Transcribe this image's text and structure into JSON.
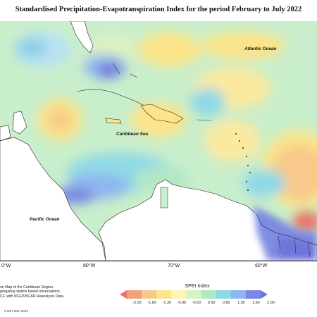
{
  "title": "Standardised Precipitation-Evapotranspiration Index for the period February to July 2022",
  "map": {
    "labels": {
      "atlantic": "Atlantic Ocean",
      "caribbean": "Caribbean Sea",
      "pacific": "Pacific Ocean"
    },
    "lon_labels": [
      "0°W",
      "80°W",
      "70°W",
      "60°W"
    ]
  },
  "description": {
    "line1": "on Map of the Caribbean Region.",
    "line2": "gregating station based observations,",
    "line3": "CF, with NCEP/NCAR Reanalysis Data."
  },
  "credit": "CIMH Mar-2023",
  "legend": {
    "title": "SPEI Index",
    "ticks": [
      "-2.00",
      "-1.60",
      "-1.30",
      "-0.80",
      "-0.50",
      "0.50",
      "0.80",
      "1.30",
      "1.60",
      "2.00"
    ],
    "colors": [
      "#e8736a",
      "#f2a077",
      "#f7c98a",
      "#fbe48a",
      "#fdf5b0",
      "#d9f2c2",
      "#b3e8c5",
      "#8fd9e6",
      "#8fb6ee",
      "#7a87e3",
      "#6f74da"
    ]
  }
}
